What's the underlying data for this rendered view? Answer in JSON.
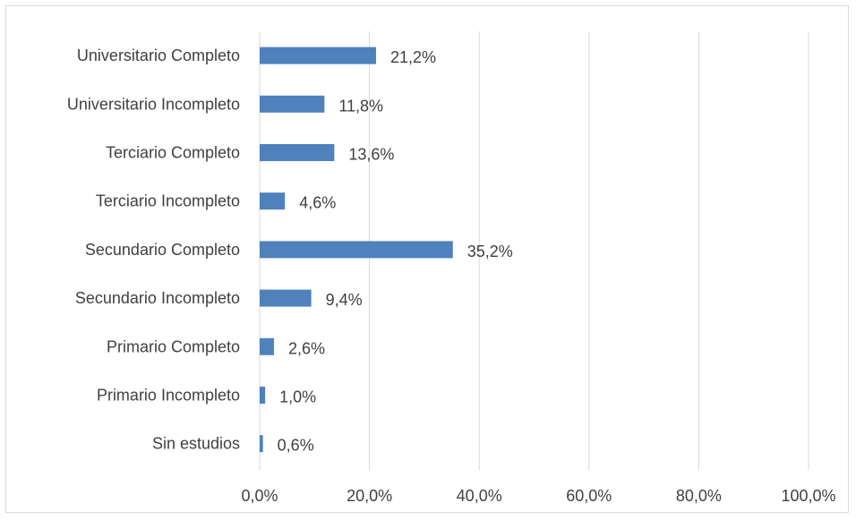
{
  "chart_data": {
    "type": "bar",
    "orientation": "horizontal",
    "categories": [
      "Universitario Completo",
      "Universitario Incompleto",
      "Terciario Completo",
      "Terciario Incompleto",
      "Secundario Completo",
      "Secundario Incompleto",
      "Primario Completo",
      "Primario Incompleto",
      "Sin estudios"
    ],
    "values": [
      21.2,
      11.8,
      13.6,
      4.6,
      35.2,
      9.4,
      2.6,
      1.0,
      0.6
    ],
    "data_labels": [
      "21,2%",
      "11,8%",
      "13,6%",
      "4,6%",
      "35,2%",
      "9,4%",
      "2,6%",
      "1,0%",
      "0,6%"
    ],
    "xlim": [
      0,
      100
    ],
    "x_ticks": [
      0,
      20,
      40,
      60,
      80,
      100
    ],
    "x_tick_labels": [
      "0,0%",
      "20,0%",
      "40,0%",
      "60,0%",
      "80,0%",
      "100,0%"
    ],
    "title": "",
    "xlabel": "",
    "ylabel": "",
    "grid": "vertical",
    "legend": "none",
    "colors": {
      "bar": "#4f81bd",
      "grid": "#d9d9d9",
      "text": "#404040"
    }
  }
}
